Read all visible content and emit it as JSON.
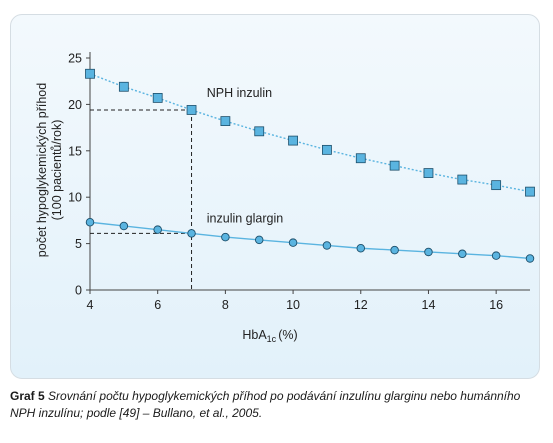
{
  "chart_data": {
    "type": "line",
    "ylabel_line1": "počet hypoglykemických příhod",
    "ylabel_line2": "(100 pacientů/rok)",
    "xlabel_main": "HbA",
    "xlabel_sub": "1c",
    "xlabel_unit": "(%)",
    "xlim": [
      4,
      17
    ],
    "ylim": [
      0,
      25
    ],
    "x_ticks": [
      4,
      6,
      8,
      10,
      12,
      14,
      16
    ],
    "y_ticks": [
      0,
      5,
      10,
      15,
      20,
      25
    ],
    "series": [
      {
        "name": "NPH inzulin",
        "marker": "square",
        "line_style": "dotted",
        "color": "#5ab4e0",
        "x": [
          4,
          5,
          6,
          7,
          8,
          9,
          10,
          11,
          12,
          13,
          14,
          15,
          16,
          17
        ],
        "y": [
          23.3,
          21.9,
          20.7,
          19.4,
          18.2,
          17.1,
          16.1,
          15.1,
          14.2,
          13.4,
          12.6,
          11.9,
          11.3,
          10.6
        ]
      },
      {
        "name": "inzulin glargin",
        "marker": "circle",
        "line_style": "solid",
        "color": "#5ab4e0",
        "x": [
          4,
          5,
          6,
          7,
          8,
          9,
          10,
          11,
          12,
          13,
          14,
          15,
          16,
          17
        ],
        "y": [
          7.3,
          6.9,
          6.5,
          6.1,
          5.7,
          5.4,
          5.1,
          4.8,
          4.5,
          4.3,
          4.1,
          3.9,
          3.7,
          3.4
        ]
      }
    ],
    "reference_lines": [
      {
        "x": 7,
        "y": 19.4
      },
      {
        "x": 7,
        "y": 6.1
      }
    ]
  },
  "caption": {
    "lead": "Graf 5",
    "text": "Srovnání počtu hypoglykemických příhod po podávání inzulínu glarginu nebo humán­ního NPH inzulínu; podle [49] – Bullano, et al., 2005."
  }
}
